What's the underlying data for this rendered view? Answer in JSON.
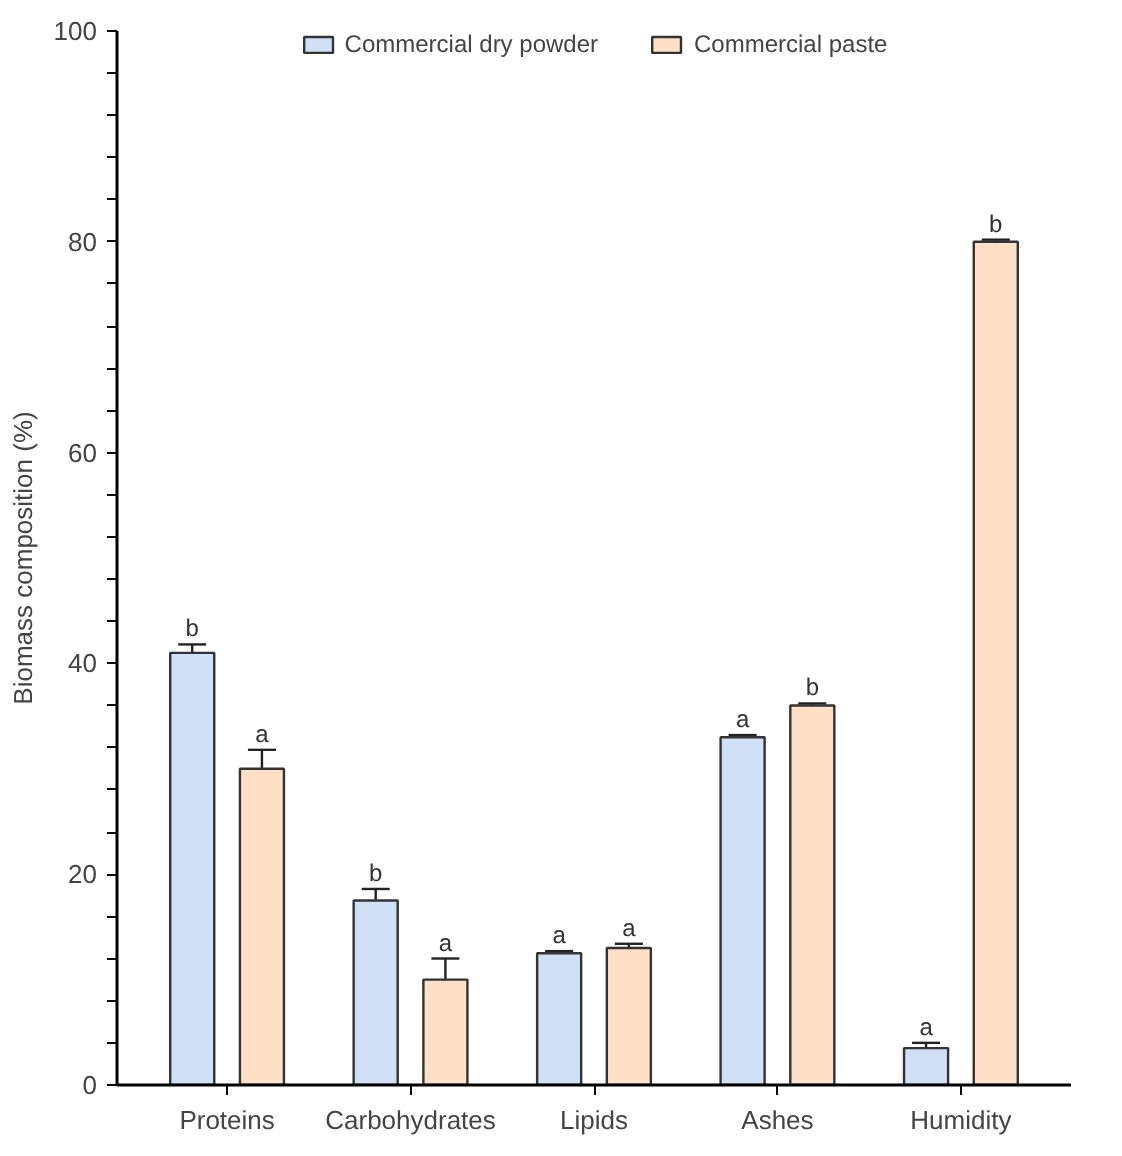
{
  "chart_data": {
    "type": "bar",
    "ylabel": "Biomass composition (%)",
    "categories": [
      "Proteins",
      "Carbohydrates",
      "Lipids",
      "Ashes",
      "Humidity"
    ],
    "series": [
      {
        "name": "Commercial dry powder",
        "color": "#cfe0f7",
        "values": [
          41,
          17.5,
          12.5,
          33,
          3.5
        ],
        "errors": [
          0.8,
          1.1,
          0.2,
          0.2,
          0.5
        ]
      },
      {
        "name": "Commercial paste",
        "color": "#fde0c6",
        "values": [
          30,
          10,
          13,
          36,
          80
        ],
        "errors": [
          1.8,
          2.0,
          0.4,
          0.2,
          0.2
        ]
      }
    ],
    "ylim": [
      0,
      100
    ],
    "yticks": [
      0,
      {
        "value": 4,
        "label": null
      },
      {
        "value": 8,
        "label": null
      },
      {
        "value": 12,
        "label": null
      },
      {
        "value": 16,
        "label": null
      },
      20,
      {
        "value": 24,
        "label": null
      },
      {
        "value": 28,
        "label": null
      },
      {
        "value": 32,
        "label": null
      },
      {
        "value": 36,
        "label": null
      },
      40,
      {
        "value": 44,
        "label": null
      },
      {
        "value": 48,
        "label": null
      },
      {
        "value": 52,
        "label": null
      },
      {
        "value": 56,
        "label": null
      },
      60,
      {
        "value": 64,
        "label": null
      },
      {
        "value": 68,
        "label": null
      },
      {
        "value": 72,
        "label": null
      },
      {
        "value": 76,
        "label": null
      },
      80,
      {
        "value": 84,
        "label": null
      },
      {
        "value": 88,
        "label": null
      },
      {
        "value": 92,
        "label": null
      },
      {
        "value": 96,
        "label": null
      },
      100
    ],
    "annotations": [
      "b",
      "a",
      "b",
      "a",
      "a",
      "a",
      "a",
      "b",
      "a",
      "b"
    ],
    "grid": false,
    "legend": "top"
  }
}
